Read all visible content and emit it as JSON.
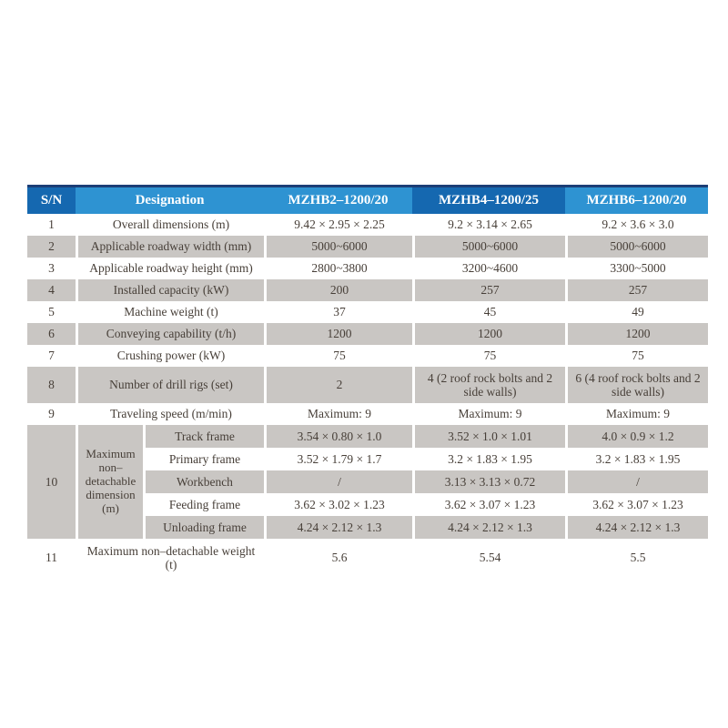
{
  "colors": {
    "header_dark_blue": "#1568b0",
    "header_light_blue": "#2e93d2",
    "top_line_navy": "#1c3e76",
    "shaded_row_gray": "#c9c6c3",
    "body_text": "#473f38",
    "header_text": "#ffffff",
    "page_background": "#ffffff"
  },
  "table": {
    "header": {
      "sn": "S/N",
      "designation": "Designation",
      "models": [
        "MZHB2–1200/20",
        "MZHB4–1200/25",
        "MZHB6–1200/20"
      ]
    },
    "rows": [
      {
        "sn": "1",
        "label": "Overall dimensions (m)",
        "values": [
          "9.42 × 2.95 × 2.25",
          "9.2 × 3.14 × 2.65",
          "9.2 × 3.6 × 3.0"
        ],
        "shaded": false
      },
      {
        "sn": "2",
        "label": "Applicable roadway width (mm)",
        "values": [
          "5000~6000",
          "5000~6000",
          "5000~6000"
        ],
        "shaded": true
      },
      {
        "sn": "3",
        "label": "Applicable roadway height (mm)",
        "values": [
          "2800~3800",
          "3200~4600",
          "3300~5000"
        ],
        "shaded": false
      },
      {
        "sn": "4",
        "label": "Installed capacity (kW)",
        "values": [
          "200",
          "257",
          "257"
        ],
        "shaded": true
      },
      {
        "sn": "5",
        "label": "Machine weight (t)",
        "values": [
          "37",
          "45",
          "49"
        ],
        "shaded": false
      },
      {
        "sn": "6",
        "label": "Conveying capability (t/h)",
        "values": [
          "1200",
          "1200",
          "1200"
        ],
        "shaded": true
      },
      {
        "sn": "7",
        "label": "Crushing power (kW)",
        "values": [
          "75",
          "75",
          "75"
        ],
        "shaded": false
      },
      {
        "sn": "8",
        "label": "Number of drill rigs (set)",
        "values": [
          "2",
          "4 (2 roof rock bolts and 2 side walls)",
          "6 (4 roof rock bolts and 2 side walls)"
        ],
        "shaded": true,
        "tall": true
      },
      {
        "sn": "9",
        "label": "Traveling speed (m/min)",
        "values": [
          "Maximum: 9",
          "Maximum: 9",
          "Maximum: 9"
        ],
        "shaded": false
      }
    ],
    "group_row": {
      "sn": "10",
      "label": "Maximum non–detachable dimension (m)",
      "sub_rows": [
        {
          "label": "Track frame",
          "values": [
            "3.54 × 0.80 × 1.0",
            "3.52 × 1.0 × 1.01",
            "4.0 × 0.9 × 1.2"
          ],
          "shaded": true
        },
        {
          "label": "Primary frame",
          "values": [
            "3.52 × 1.79 × 1.7",
            "3.2 × 1.83 × 1.95",
            "3.2 × 1.83 × 1.95"
          ],
          "shaded": false
        },
        {
          "label": "Workbench",
          "values": [
            "/",
            "3.13 × 3.13 × 0.72",
            "/"
          ],
          "shaded": true
        },
        {
          "label": "Feeding frame",
          "values": [
            "3.62 × 3.02 × 1.23",
            "3.62 × 3.07 × 1.23",
            "3.62 × 3.07 × 1.23"
          ],
          "shaded": false
        },
        {
          "label": "Unloading frame",
          "values": [
            "4.24 × 2.12 × 1.3",
            "4.24 × 2.12 × 1.3",
            "4.24 × 2.12 × 1.3"
          ],
          "shaded": true
        }
      ]
    },
    "last_row": {
      "sn": "11",
      "label": "Maximum non–detachable weight (t)",
      "values": [
        "5.6",
        "5.54",
        "5.5"
      ],
      "shaded": false
    }
  }
}
